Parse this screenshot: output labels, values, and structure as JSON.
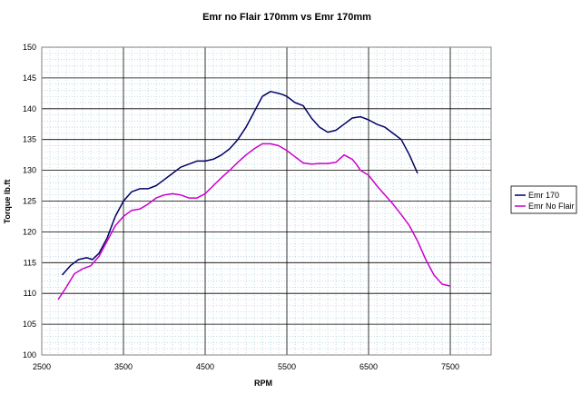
{
  "chart_data": {
    "type": "line",
    "title": "Emr no Flair 170mm vs Emr 170mm",
    "xlabel": "RPM",
    "ylabel": "Torque lb.ft",
    "xlim": [
      2500,
      8000
    ],
    "ylim": [
      100,
      150
    ],
    "x_ticks": [
      2500,
      3500,
      4500,
      5500,
      6500,
      7500
    ],
    "y_ticks": [
      100,
      105,
      110,
      115,
      120,
      125,
      130,
      135,
      140,
      145,
      150
    ],
    "grid": true,
    "legend_position": "right",
    "series": [
      {
        "name": "Emr 170",
        "color": "#000066",
        "x": [
          2750,
          2850,
          2950,
          3050,
          3120,
          3200,
          3300,
          3400,
          3500,
          3600,
          3700,
          3800,
          3900,
          4000,
          4100,
          4200,
          4300,
          4400,
          4500,
          4600,
          4700,
          4800,
          4900,
          5000,
          5100,
          5200,
          5300,
          5400,
          5450,
          5500,
          5600,
          5700,
          5800,
          5900,
          6000,
          6100,
          6200,
          6300,
          6400,
          6500,
          6600,
          6700,
          6800,
          6900,
          7000,
          7100
        ],
        "y": [
          113.0,
          114.5,
          115.5,
          115.8,
          115.5,
          116.5,
          119.0,
          122.5,
          125.0,
          126.5,
          127.0,
          127.0,
          127.5,
          128.5,
          129.5,
          130.5,
          131.0,
          131.5,
          131.5,
          131.8,
          132.5,
          133.5,
          135.0,
          137.0,
          139.5,
          142.0,
          142.8,
          142.5,
          142.3,
          142.0,
          141.0,
          140.5,
          138.5,
          137.0,
          136.2,
          136.5,
          137.5,
          138.5,
          138.7,
          138.2,
          137.5,
          137.0,
          136.0,
          135.0,
          132.5,
          129.5
        ]
      },
      {
        "name": "Emr No Flair",
        "color": "#cc00cc",
        "x": [
          2700,
          2800,
          2900,
          3000,
          3100,
          3200,
          3300,
          3400,
          3500,
          3600,
          3700,
          3800,
          3900,
          4000,
          4100,
          4200,
          4300,
          4400,
          4500,
          4600,
          4700,
          4800,
          4900,
          5000,
          5100,
          5200,
          5300,
          5400,
          5500,
          5600,
          5700,
          5800,
          5900,
          6000,
          6100,
          6200,
          6300,
          6350,
          6400,
          6500,
          6600,
          6700,
          6800,
          6900,
          7000,
          7100,
          7200,
          7300,
          7400,
          7500
        ],
        "y": [
          109.0,
          111.0,
          113.2,
          114.0,
          114.5,
          116.0,
          118.5,
          121.0,
          122.5,
          123.5,
          123.7,
          124.5,
          125.5,
          126.0,
          126.2,
          126.0,
          125.5,
          125.5,
          126.2,
          127.5,
          128.8,
          130.0,
          131.3,
          132.5,
          133.5,
          134.3,
          134.3,
          134.0,
          133.2,
          132.2,
          131.2,
          131.0,
          131.1,
          131.1,
          131.3,
          132.5,
          131.8,
          131.0,
          130.0,
          129.2,
          127.5,
          126.0,
          124.5,
          122.8,
          121.0,
          118.5,
          115.5,
          113.0,
          111.5,
          111.2
        ]
      }
    ]
  }
}
